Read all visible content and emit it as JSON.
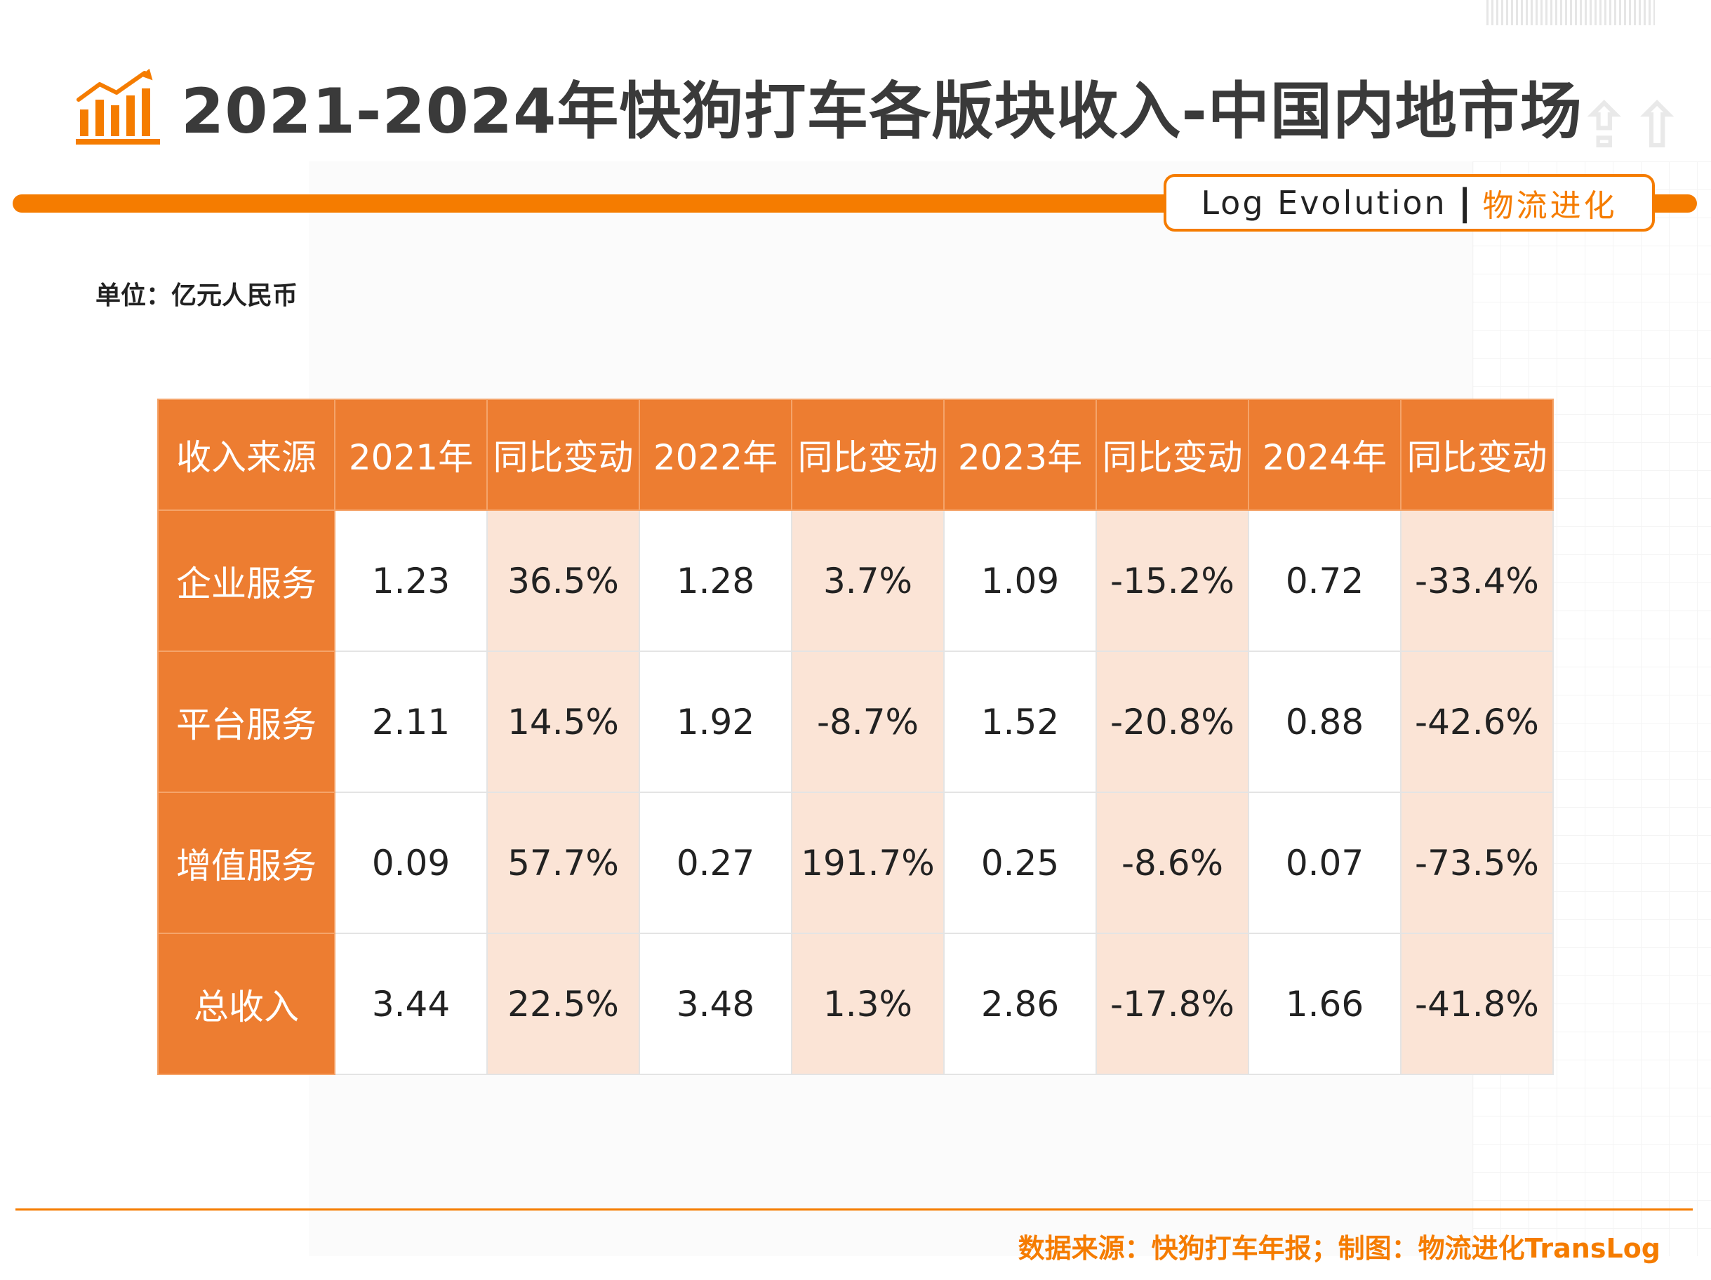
{
  "header": {
    "title": "2021-2024年快狗打车各版块收入-中国内地市场",
    "icon": "bar-chart-trend-icon",
    "brand_en": "Log Evolution",
    "brand_sep": "|",
    "brand_cn": "物流进化"
  },
  "unit_label": "单位：亿元人民币",
  "colors": {
    "accent": "#f57c00",
    "header_fill": "#ed7d31",
    "yoy_fill": "#fbe4d6",
    "title_text": "#3a3a3a"
  },
  "chart_data": {
    "type": "table",
    "title": "2021-2024年快狗打车各版块收入-中国内地市场",
    "unit": "单位：亿元人民币",
    "columns": [
      "收入来源",
      "2021年",
      "同比变动",
      "2022年",
      "同比变动",
      "2023年",
      "同比变动",
      "2024年",
      "同比变动"
    ],
    "rows": [
      {
        "label": "企业服务",
        "cells": [
          "1.23",
          "36.5%",
          "1.28",
          "3.7%",
          "1.09",
          "-15.2%",
          "0.72",
          "-33.4%"
        ]
      },
      {
        "label": "平台服务",
        "cells": [
          "2.11",
          "14.5%",
          "1.92",
          "-8.7%",
          "1.52",
          "-20.8%",
          "0.88",
          "-42.6%"
        ]
      },
      {
        "label": "增值服务",
        "cells": [
          "0.09",
          "57.7%",
          "0.27",
          "191.7%",
          "0.25",
          "-8.6%",
          "0.07",
          "-73.5%"
        ]
      },
      {
        "label": "总收入",
        "cells": [
          "3.44",
          "22.5%",
          "3.48",
          "1.3%",
          "2.86",
          "-17.8%",
          "1.66",
          "-41.8%"
        ]
      }
    ]
  },
  "footer": {
    "source": "数据来源：快狗打车年报；制图：物流进化TransLog"
  }
}
